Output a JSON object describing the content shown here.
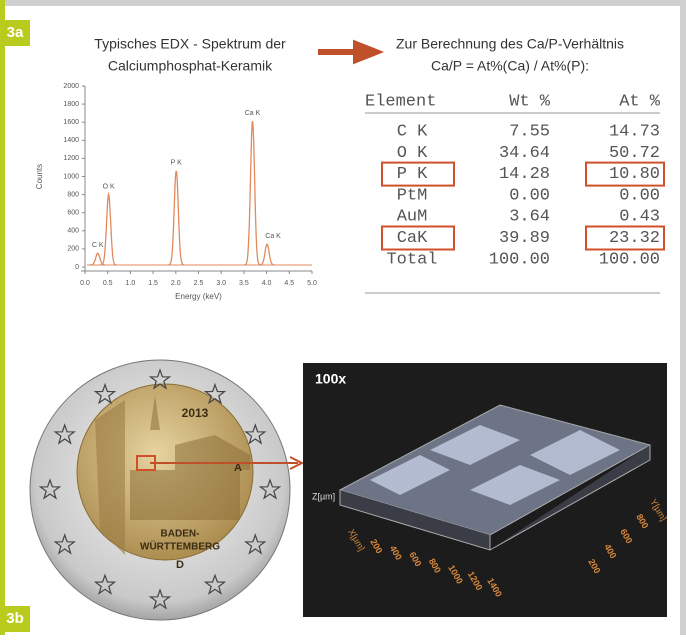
{
  "labels": {
    "top": "3a",
    "bottom": "3b"
  },
  "spectrum": {
    "title": [
      "Typisches EDX - Spektrum der",
      "Calciumphosphat-Keramik"
    ],
    "ylabel": "Counts",
    "xlabel": "Energy (keV)",
    "color": "#e08a5e",
    "xlim": [
      0,
      5
    ],
    "xticks": [
      {
        "value": 0,
        "label": "0.0"
      },
      {
        "value": 0.5,
        "label": "0.5"
      },
      {
        "value": 1,
        "label": "1.0"
      },
      {
        "value": 1.5,
        "label": "1.5"
      },
      {
        "value": 2,
        "label": "2.0"
      },
      {
        "value": 2.5,
        "label": "2.5"
      },
      {
        "value": 3,
        "label": "3.0"
      },
      {
        "value": 3.5,
        "label": "3.5"
      },
      {
        "value": 4,
        "label": "4.0"
      },
      {
        "value": 4.5,
        "label": "4.5"
      },
      {
        "value": 5,
        "label": "5.0"
      }
    ],
    "ylim": [
      0,
      2000
    ],
    "yticks": [
      0,
      200,
      400,
      600,
      800,
      1000,
      1200,
      1400,
      1600,
      1800,
      2000
    ],
    "peaks": [
      {
        "label": "C K",
        "x": 0.28,
        "y": 130
      },
      {
        "label": "O K",
        "x": 0.52,
        "y": 780
      },
      {
        "label": "P K",
        "x": 2.01,
        "y": 1040
      },
      {
        "label": "Ca K",
        "x": 3.69,
        "y": 1590
      },
      {
        "label": "Ca K",
        "x": 4.01,
        "y": 230
      }
    ]
  },
  "formula": {
    "lines": [
      "Zur Berechnung des Ca/P-Verhältnis",
      "Ca/P = At%(Ca) / At%(P):"
    ]
  },
  "table": {
    "header": [
      "Element",
      "Wt %",
      "At %"
    ],
    "rows": [
      [
        "C K",
        "7.55",
        "14.73"
      ],
      [
        "O K",
        "34.64",
        "50.72"
      ],
      [
        "P K",
        "14.28",
        "10.80"
      ],
      [
        "PtM",
        "0.00",
        "0.00"
      ],
      [
        "AuM",
        "3.64",
        "0.43"
      ],
      [
        "CaK",
        "39.89",
        "23.32"
      ],
      [
        "Total",
        "100.00",
        "100.00"
      ]
    ]
  },
  "coin": {
    "year": "2013",
    "mint": "A",
    "state": [
      "BADEN-",
      "WÜRTTEMBERG"
    ],
    "mark": "D"
  },
  "micro": {
    "magnification": "100x",
    "zlabel": "Z[µm]",
    "xlabel": "X[µm]",
    "xticks": [
      "200",
      "400",
      "600",
      "800",
      "1000",
      "1200",
      "1400"
    ],
    "ylabel": "Y[µm]",
    "yticks": [
      "200",
      "400",
      "600",
      "800"
    ]
  }
}
